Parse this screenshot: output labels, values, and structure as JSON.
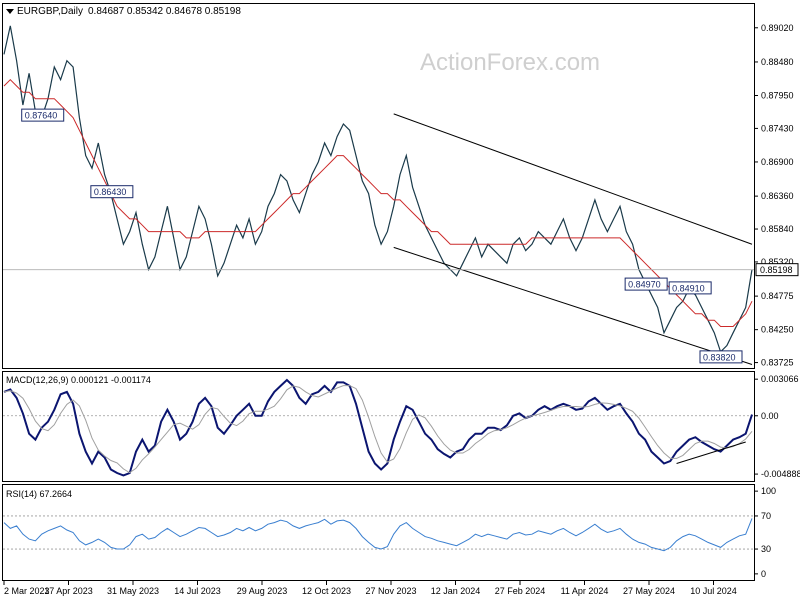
{
  "chart_data": {
    "type": "line",
    "symbol": "EURGBP,Daily",
    "ohlc": "0.84687 0.85342 0.84678 0.85198",
    "watermark": "ActionForex.com",
    "last_price": 0.85198,
    "last_price_label": "0.85198",
    "price_ticks": [
      0.8902,
      0.8848,
      0.8795,
      0.8743,
      0.869,
      0.8636,
      0.8584,
      0.8532,
      0.8478,
      0.8425,
      0.8373
    ],
    "price_tick_labels": [
      "0.89020",
      "0.88480",
      "0.87950",
      "0.87430",
      "0.86900",
      "0.86360",
      "0.85840",
      "0.85320",
      "0.84775",
      "0.84250",
      "0.83725"
    ],
    "price_range": [
      0.8366,
      0.8938
    ],
    "date_labels": [
      "2 Mar 2023",
      "17 Apr 2023",
      "31 May 2023",
      "14 Jul 2023",
      "29 Aug 2023",
      "12 Oct 2023",
      "27 Nov 2023",
      "12 Jan 2024",
      "27 Feb 2024",
      "11 Apr 2024",
      "27 May 2024",
      "10 Jul 2024"
    ],
    "price_annotations": [
      {
        "label": "0.87640",
        "value": 0.8764
      },
      {
        "label": "0.84910",
        "value": 0.8491
      },
      {
        "label": "0.86430",
        "value": 0.8643
      },
      {
        "label": "0.84970",
        "value": 0.8497
      },
      {
        "label": "0.83820",
        "value": 0.8382
      }
    ],
    "price_series": [
      {
        "name": "close",
        "color": "#1a3a4a",
        "values": [
          0.886,
          0.8905,
          0.885,
          0.878,
          0.883,
          0.877,
          0.876,
          0.879,
          0.884,
          0.882,
          0.885,
          0.884,
          0.876,
          0.87,
          0.868,
          0.872,
          0.867,
          0.864,
          0.86,
          0.856,
          0.858,
          0.861,
          0.856,
          0.852,
          0.854,
          0.858,
          0.862,
          0.857,
          0.852,
          0.854,
          0.858,
          0.862,
          0.86,
          0.856,
          0.851,
          0.853,
          0.856,
          0.859,
          0.857,
          0.86,
          0.856,
          0.858,
          0.862,
          0.864,
          0.867,
          0.866,
          0.863,
          0.861,
          0.864,
          0.867,
          0.869,
          0.872,
          0.87,
          0.873,
          0.875,
          0.874,
          0.87,
          0.866,
          0.864,
          0.859,
          0.856,
          0.858,
          0.862,
          0.867,
          0.87,
          0.865,
          0.862,
          0.859,
          0.857,
          0.855,
          0.853,
          0.852,
          0.851,
          0.853,
          0.855,
          0.857,
          0.854,
          0.856,
          0.855,
          0.854,
          0.853,
          0.856,
          0.857,
          0.855,
          0.856,
          0.858,
          0.857,
          0.856,
          0.858,
          0.86,
          0.857,
          0.855,
          0.857,
          0.86,
          0.863,
          0.86,
          0.858,
          0.86,
          0.862,
          0.858,
          0.856,
          0.852,
          0.85,
          0.848,
          0.846,
          0.842,
          0.844,
          0.846,
          0.847,
          0.849,
          0.848,
          0.846,
          0.844,
          0.842,
          0.839,
          0.84,
          0.842,
          0.844,
          0.846,
          0.852
        ]
      },
      {
        "name": "ma",
        "color": "#cc2a2a",
        "values": [
          0.881,
          0.882,
          0.881,
          0.88,
          0.88,
          0.879,
          0.879,
          0.879,
          0.879,
          0.878,
          0.877,
          0.876,
          0.874,
          0.872,
          0.87,
          0.868,
          0.866,
          0.864,
          0.862,
          0.861,
          0.86,
          0.86,
          0.859,
          0.858,
          0.858,
          0.858,
          0.858,
          0.858,
          0.858,
          0.857,
          0.857,
          0.857,
          0.858,
          0.858,
          0.858,
          0.858,
          0.858,
          0.858,
          0.858,
          0.858,
          0.858,
          0.859,
          0.86,
          0.861,
          0.862,
          0.863,
          0.864,
          0.864,
          0.865,
          0.866,
          0.867,
          0.868,
          0.869,
          0.87,
          0.87,
          0.869,
          0.868,
          0.867,
          0.866,
          0.865,
          0.864,
          0.864,
          0.863,
          0.863,
          0.862,
          0.861,
          0.86,
          0.859,
          0.858,
          0.858,
          0.857,
          0.856,
          0.856,
          0.856,
          0.856,
          0.856,
          0.856,
          0.856,
          0.856,
          0.856,
          0.856,
          0.856,
          0.856,
          0.856,
          0.857,
          0.857,
          0.857,
          0.857,
          0.857,
          0.857,
          0.857,
          0.857,
          0.857,
          0.857,
          0.857,
          0.857,
          0.857,
          0.857,
          0.857,
          0.856,
          0.855,
          0.854,
          0.853,
          0.852,
          0.851,
          0.85,
          0.849,
          0.848,
          0.847,
          0.846,
          0.845,
          0.845,
          0.844,
          0.844,
          0.843,
          0.843,
          0.843,
          0.844,
          0.845,
          0.847
        ]
      }
    ],
    "trend_channel": [
      {
        "from_index": 62,
        "from_value": 0.8766,
        "to_index": 119,
        "to_value": 0.856
      },
      {
        "from_index": 62,
        "from_value": 0.8555,
        "to_index": 119,
        "to_value": 0.837
      }
    ],
    "macd": {
      "label": "MACD(12,26,9) 0.000121 -0.001174",
      "ticks": [
        0.003066,
        0.0,
        -0.004888
      ],
      "tick_labels": [
        "0.003066",
        "0.00",
        "-0.004888"
      ],
      "range": [
        -0.0053,
        0.0035
      ],
      "macd_values": [
        0.002,
        0.0022,
        0.0015,
        0.0002,
        -0.0015,
        -0.002,
        -0.001,
        -0.0005,
        0.0005,
        0.0018,
        0.002,
        0.001,
        -0.0015,
        -0.003,
        -0.004,
        -0.003,
        -0.0035,
        -0.0045,
        -0.0048,
        -0.005,
        -0.0048,
        -0.003,
        -0.002,
        -0.003,
        -0.0025,
        -0.0005,
        0.0005,
        -0.0005,
        -0.002,
        -0.0015,
        -0.0005,
        0.001,
        0.0015,
        0.0008,
        -0.001,
        -0.0015,
        -0.0008,
        0.0,
        0.0005,
        0.001,
        0.0,
        0.0,
        0.0012,
        0.002,
        0.0025,
        0.003,
        0.0025,
        0.0015,
        0.001,
        0.0018,
        0.002,
        0.0025,
        0.002,
        0.0028,
        0.0028,
        0.0025,
        0.001,
        -0.001,
        -0.003,
        -0.004,
        -0.0045,
        -0.004,
        -0.002,
        -0.0005,
        0.0008,
        0.0005,
        -0.0005,
        -0.0015,
        -0.002,
        -0.0028,
        -0.0032,
        -0.0035,
        -0.003,
        -0.0028,
        -0.002,
        -0.0015,
        -0.0015,
        -0.001,
        -0.001,
        -0.0012,
        -0.0008,
        0.0,
        0.0002,
        -0.0002,
        0.0,
        0.0005,
        0.0008,
        0.0005,
        0.0008,
        0.001,
        0.0008,
        0.0005,
        0.0006,
        0.0012,
        0.0015,
        0.001,
        0.0005,
        0.0008,
        0.001,
        0.0002,
        -0.0005,
        -0.0015,
        -0.002,
        -0.003,
        -0.0035,
        -0.004,
        -0.0038,
        -0.003,
        -0.0025,
        -0.002,
        -0.0018,
        -0.0022,
        -0.0025,
        -0.0028,
        -0.003,
        -0.0025,
        -0.002,
        -0.0018,
        -0.0015,
        0.0001
      ]
    },
    "rsi": {
      "label": "RSI(14) 67.2664",
      "ticks": [
        100,
        70,
        30,
        0
      ],
      "tick_labels": [
        "100",
        "70",
        "30",
        "0"
      ],
      "range": [
        -5,
        105
      ],
      "values": [
        62,
        55,
        58,
        48,
        42,
        40,
        48,
        52,
        55,
        58,
        53,
        50,
        40,
        35,
        38,
        42,
        38,
        32,
        30,
        30,
        35,
        45,
        48,
        42,
        44,
        50,
        55,
        50,
        45,
        48,
        52,
        56,
        55,
        50,
        45,
        47,
        50,
        55,
        52,
        56,
        52,
        55,
        60,
        62,
        65,
        63,
        58,
        55,
        58,
        60,
        62,
        66,
        60,
        64,
        65,
        62,
        55,
        45,
        38,
        32,
        30,
        33,
        48,
        58,
        62,
        55,
        50,
        45,
        43,
        40,
        38,
        36,
        34,
        38,
        42,
        48,
        45,
        48,
        46,
        44,
        42,
        48,
        50,
        47,
        48,
        52,
        50,
        48,
        52,
        55,
        50,
        46,
        50,
        55,
        60,
        54,
        50,
        52,
        55,
        48,
        42,
        38,
        36,
        32,
        30,
        28,
        32,
        40,
        45,
        48,
        46,
        42,
        38,
        35,
        32,
        38,
        42,
        46,
        48,
        67
      ]
    }
  }
}
